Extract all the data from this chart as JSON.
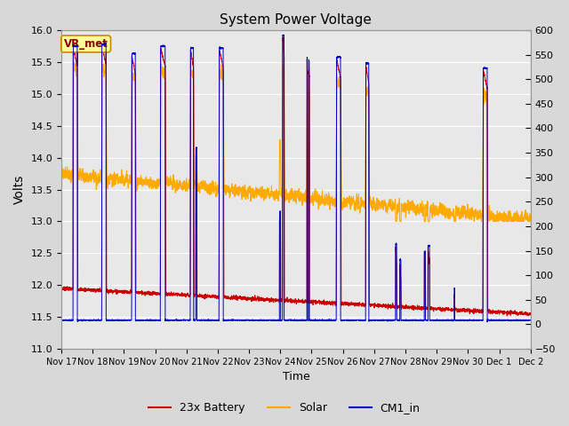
{
  "title": "System Power Voltage",
  "xlabel": "Time",
  "ylabel": "Volts",
  "ylim_left": [
    11.0,
    16.0
  ],
  "ylim_right": [
    -50,
    600
  ],
  "yticks_left": [
    11.0,
    11.5,
    12.0,
    12.5,
    13.0,
    13.5,
    14.0,
    14.5,
    15.0,
    15.5,
    16.0
  ],
  "yticks_right": [
    -50,
    0,
    50,
    100,
    150,
    200,
    250,
    300,
    350,
    400,
    450,
    500,
    550,
    600
  ],
  "xtick_labels": [
    "Nov 17",
    "Nov 18",
    "Nov 19",
    "Nov 20",
    "Nov 21",
    "Nov 22",
    "Nov 23",
    "Nov 24",
    "Nov 25",
    "Nov 26",
    "Nov 27",
    "Nov 28",
    "Nov 29",
    "Nov 30",
    "Dec 1",
    "Dec 2"
  ],
  "fig_bg": "#d8d8d8",
  "plot_bg": "#e8e8e8",
  "grid_color": "#ffffff",
  "col_battery": "#cc0000",
  "col_solar": "#ffaa00",
  "col_cm1": "#0000cc",
  "vr_met_label": "VR_met",
  "vr_met_bg": "#ffff99",
  "vr_met_border": "#cc8800",
  "vr_met_text_color": "#880000",
  "legend_labels": [
    "23x Battery",
    "Solar",
    "CM1_in"
  ]
}
